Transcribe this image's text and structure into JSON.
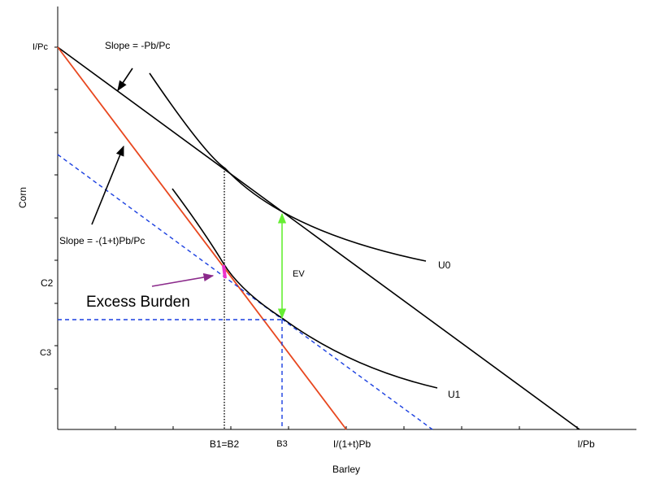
{
  "axes": {
    "x_label": "Barley",
    "y_label": "Corn"
  },
  "x_ticks": {
    "b1b2": "B1=B2",
    "b3": "B3",
    "taxed": "I/(1+t)Pb",
    "max": "I/Pb"
  },
  "y_ticks": {
    "max": "I/Pc",
    "c2": "C2",
    "c3": "C3"
  },
  "curves": {
    "u0": "U0",
    "u1": "U1"
  },
  "annotations": {
    "slope_original": "Slope = -Pb/Pc",
    "slope_taxed": "Slope = -(1+t)Pb/Pc",
    "ev": "EV",
    "excess_burden": "Excess Burden"
  },
  "colors": {
    "original_budget": "#000000",
    "taxed_budget": "#e8471f",
    "compensated_budget": "#1a3fe0",
    "ev_arrow": "#66ee33",
    "excess_burden_marker": "#ee33cc",
    "excess_burden_arrow": "#8b2a8b"
  }
}
